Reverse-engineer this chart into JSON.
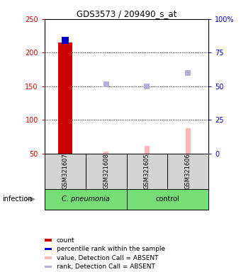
{
  "title": "GDS3573 / 209490_s_at",
  "samples": [
    "GSM321607",
    "GSM321608",
    "GSM321605",
    "GSM321606"
  ],
  "left_ylim": [
    50,
    250
  ],
  "right_ylim": [
    0,
    100
  ],
  "left_yticks": [
    50,
    100,
    150,
    200,
    250
  ],
  "right_yticks": [
    0,
    25,
    50,
    75,
    100
  ],
  "right_yticklabels": [
    "0",
    "25",
    "50",
    "75",
    "100%"
  ],
  "grid_lines": [
    100,
    150,
    200
  ],
  "count_values": [
    215.0,
    50.0,
    50.0,
    50.0
  ],
  "percentile_value_sample0": 218.0,
  "absent_value_bars": [
    null,
    53.0,
    62.0,
    88.0
  ],
  "absent_rank_dots": [
    null,
    153.0,
    150.0,
    170.0
  ],
  "count_color": "#cc0000",
  "percentile_color": "#0000cc",
  "absent_value_color": "#ffb6b6",
  "absent_rank_color": "#b0b0d8",
  "left_label_color": "#cc0000",
  "right_label_color": "#0000cc",
  "sample_box_color": "#d3d3d3",
  "group_box_color": "#77dd77",
  "group1_label": "C. pneumonia",
  "group2_label": "control",
  "infection_label": "infection",
  "legend_items": [
    {
      "label": "count",
      "color": "#cc0000"
    },
    {
      "label": "percentile rank within the sample",
      "color": "#0000cc"
    },
    {
      "label": "value, Detection Call = ABSENT",
      "color": "#ffb6b6"
    },
    {
      "label": "rank, Detection Call = ABSENT",
      "color": "#b0b0d8"
    }
  ]
}
